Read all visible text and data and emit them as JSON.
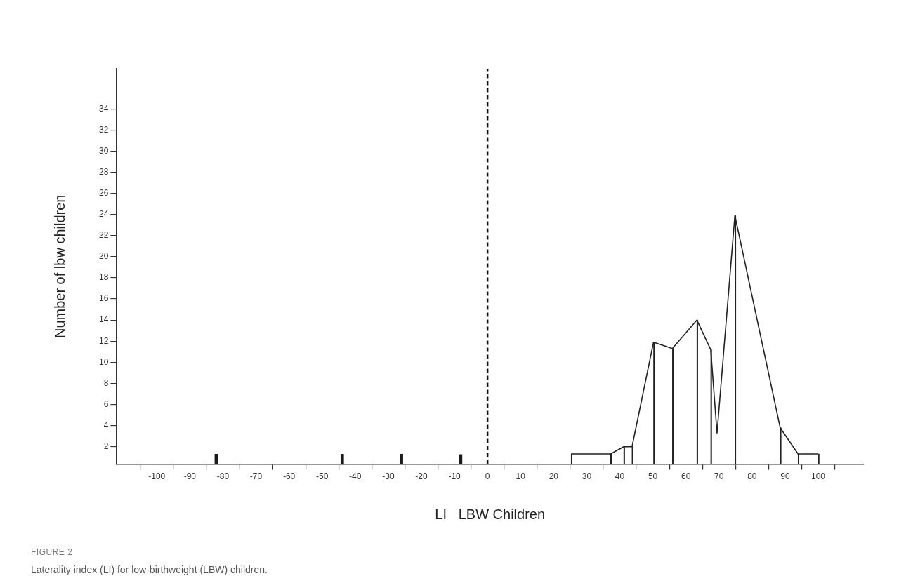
{
  "chart_data": {
    "type": "line",
    "xlabel": "LI   LBW Children",
    "ylabel": "Number of lbw children",
    "xlim": [
      -112.3,
      113.8
    ],
    "ylim": [
      0.35,
      37.8
    ],
    "xticks": [
      -100,
      -90,
      -80,
      -70,
      -60,
      -50,
      -40,
      -30,
      -20,
      -10,
      0,
      10,
      20,
      30,
      40,
      50,
      60,
      70,
      80,
      90,
      100
    ],
    "yticks": [
      2,
      4,
      6,
      8,
      10,
      12,
      14,
      16,
      18,
      20,
      22,
      24,
      26,
      28,
      30,
      32,
      34
    ],
    "series": [
      {
        "color": "#222222",
        "x": [
          25.3,
          37.2,
          41.2,
          43.7,
          50.2,
          55.9,
          63.3,
          67.5,
          69.4,
          74.8,
          88.5,
          93.9,
          100
        ],
        "values": [
          1.32,
          1.32,
          2.0,
          2.0,
          11.9,
          11.3,
          14.0,
          11.2,
          3.3,
          23.9,
          3.8,
          1.32,
          1.32
        ]
      },
      {
        "type": "bar",
        "color": "#1a1a1a",
        "x": [
          -81.6,
          -43.5,
          -25.6,
          -7.7
        ],
        "values": [
          1.3,
          1.3,
          1.3,
          1.27
        ]
      },
      {
        "type": "bar",
        "color": "#222222",
        "x": [
          25.3,
          37.2,
          41.2,
          43.7,
          50.2,
          55.9,
          63.3,
          67.5,
          74.8,
          88.5,
          93.9,
          100
        ],
        "values": [
          1.32,
          1.32,
          2.0,
          2.0,
          11.9,
          11.3,
          14.0,
          11.2,
          23.9,
          3.8,
          1.32,
          1.32
        ]
      }
    ],
    "ref_lines": [
      {
        "axis": "x",
        "value": 0,
        "color": "#111111",
        "line_style": "dashed"
      }
    ],
    "marker": "none",
    "grid": false,
    "legend": false,
    "annotations": [
      "FIGURE 2",
      "Laterality index (LI) for low-birthweight (LBW) children."
    ]
  }
}
